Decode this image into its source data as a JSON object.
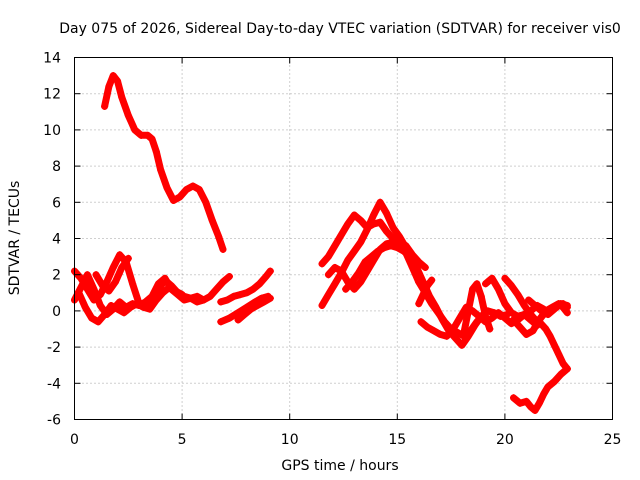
{
  "chart_data": {
    "type": "scatter",
    "title": "Day 075 of 2026, Sidereal Day-to-day VTEC variation (SDTVAR) for receiver vis0",
    "xlabel": "GPS time / hours",
    "ylabel": "SDTVAR / TECUs",
    "xlim": [
      0,
      25
    ],
    "ylim": [
      -6,
      14
    ],
    "xticks": [
      0,
      5,
      10,
      15,
      20,
      25
    ],
    "yticks": [
      -6,
      -4,
      -2,
      0,
      2,
      4,
      6,
      8,
      10,
      12,
      14
    ],
    "grid": true,
    "marker": "+",
    "color": "#ff0000",
    "series": [
      {
        "name": "track-high",
        "x": [
          1.4,
          1.6,
          1.8,
          2.0,
          2.2,
          2.5,
          2.8,
          3.1,
          3.4,
          3.6,
          3.8,
          4.0,
          4.3,
          4.6,
          4.9,
          5.2,
          5.5,
          5.8,
          6.1,
          6.4,
          6.7,
          6.9
        ],
        "y": [
          11.3,
          12.4,
          13.0,
          12.7,
          11.8,
          10.8,
          10.0,
          9.7,
          9.7,
          9.5,
          8.8,
          7.8,
          6.8,
          6.1,
          6.3,
          6.7,
          6.9,
          6.7,
          6.0,
          5.0,
          4.1,
          3.4
        ]
      },
      {
        "name": "track-low-a",
        "x": [
          0.0,
          0.3,
          0.6,
          0.9,
          1.2,
          1.5,
          1.8,
          2.1,
          2.4,
          2.7,
          3.0,
          3.3,
          3.6,
          3.9,
          4.2,
          4.5,
          4.8,
          5.1,
          5.4,
          5.7,
          6.0,
          6.3,
          6.6,
          6.9,
          7.2
        ],
        "y": [
          2.2,
          1.8,
          1.2,
          0.6,
          0.9,
          1.6,
          2.4,
          3.1,
          2.7,
          1.5,
          0.4,
          0.2,
          0.5,
          1.2,
          1.7,
          1.4,
          1.0,
          0.8,
          0.7,
          0.8,
          0.6,
          0.8,
          1.2,
          1.6,
          1.9
        ]
      },
      {
        "name": "track-low-b",
        "x": [
          0.0,
          0.3,
          0.6,
          0.9,
          1.2,
          1.5,
          1.8,
          2.1,
          2.4,
          2.7,
          3.0,
          3.3,
          3.6,
          3.9,
          4.2,
          4.5,
          4.8,
          5.1,
          5.4,
          5.7,
          6.0
        ],
        "y": [
          0.6,
          1.3,
          2.0,
          1.2,
          0.3,
          -0.2,
          0.1,
          0.5,
          0.2,
          0.4,
          0.3,
          0.5,
          0.8,
          1.5,
          1.8,
          1.2,
          0.9,
          0.6,
          0.7,
          0.5,
          0.6
        ]
      },
      {
        "name": "track-low-c",
        "x": [
          0.2,
          0.5,
          0.8,
          1.1,
          1.4,
          1.7,
          2.0,
          2.3,
          2.6,
          2.9,
          3.2,
          3.5,
          3.8,
          4.1,
          4.4,
          4.7,
          5.0
        ],
        "y": [
          1.0,
          0.2,
          -0.4,
          -0.6,
          -0.2,
          0.3,
          0.1,
          -0.1,
          0.2,
          0.4,
          0.2,
          0.1,
          0.6,
          1.0,
          1.3,
          1.1,
          0.9
        ]
      },
      {
        "name": "track-low-d",
        "x": [
          1.0,
          1.3,
          1.6,
          1.9,
          2.2,
          2.5
        ],
        "y": [
          2.0,
          1.4,
          1.1,
          1.6,
          2.4,
          2.9
        ]
      },
      {
        "name": "track-low-e",
        "x": [
          6.8,
          7.1,
          7.4,
          7.7,
          8.0,
          8.3,
          8.6,
          8.9,
          9.1
        ],
        "y": [
          0.5,
          0.6,
          0.8,
          0.9,
          1.0,
          1.2,
          1.5,
          1.9,
          2.2
        ]
      },
      {
        "name": "track-low-f",
        "x": [
          6.8,
          7.2,
          7.6,
          8.0,
          8.4,
          8.7,
          9.0
        ],
        "y": [
          -0.6,
          -0.4,
          -0.1,
          0.2,
          0.5,
          0.7,
          0.8
        ]
      },
      {
        "name": "track-low-g",
        "x": [
          7.6,
          7.9,
          8.2,
          8.5,
          8.8,
          9.1
        ],
        "y": [
          -0.5,
          -0.2,
          0.1,
          0.3,
          0.5,
          0.7
        ]
      },
      {
        "name": "track-mid-a",
        "x": [
          11.5,
          11.8,
          12.1,
          12.4,
          12.7,
          13.0,
          13.3,
          13.6,
          13.9,
          14.2,
          14.5,
          14.8,
          15.1,
          15.4,
          15.7,
          16.0,
          16.3
        ],
        "y": [
          2.6,
          3.0,
          3.6,
          4.2,
          4.8,
          5.3,
          5.0,
          4.6,
          4.8,
          4.9,
          4.4,
          4.0,
          3.8,
          3.6,
          3.1,
          2.7,
          2.4
        ]
      },
      {
        "name": "track-mid-b",
        "x": [
          11.5,
          11.8,
          12.1,
          12.4,
          12.7,
          13.0,
          13.3,
          13.6,
          13.9,
          14.2,
          14.5,
          14.8,
          15.1,
          15.4,
          15.7,
          16.0
        ],
        "y": [
          0.3,
          0.9,
          1.5,
          2.1,
          2.8,
          3.3,
          3.8,
          4.5,
          5.3,
          6.0,
          5.4,
          4.6,
          4.1,
          3.5,
          2.5,
          1.6
        ]
      },
      {
        "name": "track-mid-c",
        "x": [
          11.8,
          12.1,
          12.4,
          12.7,
          13.0,
          13.3,
          13.6,
          13.9,
          14.2,
          14.5,
          14.8,
          15.1,
          15.4,
          15.7,
          16.0,
          16.3,
          16.6,
          16.9,
          17.2,
          17.5,
          17.8,
          18.1,
          18.4,
          18.7,
          19.0
        ],
        "y": [
          2.0,
          2.4,
          2.2,
          1.6,
          1.2,
          1.6,
          2.2,
          2.8,
          3.4,
          3.7,
          3.8,
          3.6,
          3.2,
          2.4,
          1.6,
          1.0,
          0.4,
          -0.1,
          -0.6,
          -1.0,
          -1.2,
          -1.4,
          -1.1,
          -0.6,
          -0.2
        ]
      },
      {
        "name": "track-mid-d",
        "x": [
          12.6,
          12.9,
          13.2,
          13.5,
          13.8,
          14.1,
          14.4,
          14.7,
          15.0,
          15.3,
          15.6,
          15.9,
          16.2,
          16.5,
          16.8,
          17.1,
          17.4,
          17.7,
          18.0,
          18.3,
          18.6,
          18.9,
          19.2,
          19.5,
          19.8,
          20.1
        ],
        "y": [
          1.2,
          1.6,
          2.1,
          2.7,
          3.0,
          3.3,
          3.5,
          3.6,
          3.5,
          3.3,
          3.0,
          2.4,
          1.6,
          0.8,
          0.2,
          -0.5,
          -1.1,
          -1.5,
          -1.9,
          -1.4,
          -0.8,
          -0.3,
          0.0,
          -0.1,
          -0.3,
          -0.2
        ]
      },
      {
        "name": "track-right-a",
        "x": [
          16.1,
          16.4,
          16.7,
          17.0,
          17.3,
          17.6,
          17.9,
          18.2,
          18.5,
          18.8,
          19.1,
          19.4,
          19.7,
          20.0,
          20.3,
          20.6,
          20.9,
          21.2,
          21.5,
          21.8
        ],
        "y": [
          -0.6,
          -0.9,
          -1.1,
          -1.3,
          -1.4,
          -1.0,
          -0.4,
          0.2,
          0.0,
          -0.3,
          -0.6,
          -0.4,
          -0.1,
          -0.4,
          -0.7,
          -0.5,
          -0.2,
          0.0,
          0.3,
          0.1
        ]
      },
      {
        "name": "track-right-b",
        "x": [
          16.0,
          16.2,
          16.4,
          16.6
        ],
        "y": [
          0.4,
          0.9,
          1.4,
          1.7
        ]
      },
      {
        "name": "track-right-c",
        "x": [
          18.1,
          18.3,
          18.5,
          18.7,
          18.9,
          19.1,
          19.3
        ],
        "y": [
          -1.2,
          0.0,
          1.2,
          1.5,
          0.8,
          -0.3,
          -1.0
        ]
      },
      {
        "name": "track-right-d",
        "x": [
          19.1,
          19.4,
          19.7,
          20.0,
          20.3,
          20.6,
          20.9,
          21.2,
          21.5
        ],
        "y": [
          1.5,
          1.8,
          1.2,
          0.4,
          -0.1,
          -0.3,
          -0.2,
          -0.5,
          -0.8
        ]
      },
      {
        "name": "track-right-e",
        "x": [
          20.0,
          20.3,
          20.6,
          20.9,
          21.2,
          21.5,
          21.8,
          22.1,
          22.4,
          22.7,
          22.9
        ],
        "y": [
          1.8,
          1.4,
          0.9,
          0.3,
          -0.2,
          -0.6,
          -0.2,
          0.1,
          0.3,
          0.4,
          0.2
        ]
      },
      {
        "name": "track-right-f",
        "x": [
          20.4,
          20.7,
          21.0,
          21.3,
          21.6,
          21.9,
          22.2,
          22.5,
          22.7,
          22.9
        ],
        "y": [
          -0.5,
          -0.9,
          -1.3,
          -1.1,
          -0.5,
          0.0,
          0.2,
          0.4,
          0.2,
          -0.1
        ]
      },
      {
        "name": "track-right-g",
        "x": [
          21.6,
          21.9,
          22.1,
          22.3,
          22.5,
          22.7,
          22.9
        ],
        "y": [
          -0.6,
          -1.0,
          -1.4,
          -1.9,
          -2.4,
          -2.9,
          -3.2
        ]
      },
      {
        "name": "track-right-h",
        "x": [
          22.9,
          22.6,
          22.3,
          22.0,
          21.8,
          21.6,
          21.4,
          21.2,
          21.0,
          20.7,
          20.4
        ],
        "y": [
          -3.2,
          -3.5,
          -3.9,
          -4.2,
          -4.6,
          -5.1,
          -5.5,
          -5.3,
          -5.0,
          -5.1,
          -4.8
        ]
      },
      {
        "name": "track-right-i",
        "x": [
          21.1,
          21.4,
          21.7,
          22.0,
          22.3,
          22.6,
          22.9
        ],
        "y": [
          0.6,
          0.3,
          0.0,
          -0.2,
          0.1,
          0.4,
          0.3
        ]
      }
    ]
  }
}
